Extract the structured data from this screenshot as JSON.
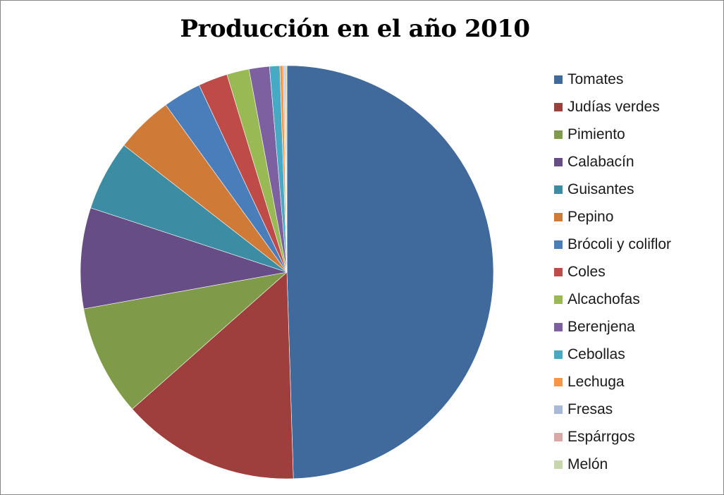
{
  "chart_data": {
    "type": "pie",
    "title": "Producción en el año 2010",
    "legend_position": "right",
    "start_angle": "top, clockwise",
    "slices": [
      {
        "label": "Tomates",
        "value": 49.6,
        "color": "#40699C"
      },
      {
        "label": "Judías verdes",
        "value": 14.0,
        "color": "#9E3F3D"
      },
      {
        "label": "Pimiento",
        "value": 8.7,
        "color": "#7F9A48"
      },
      {
        "label": "Calabacín",
        "value": 7.9,
        "color": "#664D86"
      },
      {
        "label": "Guisantes",
        "value": 5.5,
        "color": "#3C8DA3"
      },
      {
        "label": "Pepino",
        "value": 4.5,
        "color": "#CF7B37"
      },
      {
        "label": "Brócoli y coliflor",
        "value": 3.0,
        "color": "#4A7EBB"
      },
      {
        "label": "Coles",
        "value": 2.3,
        "color": "#BE4B48"
      },
      {
        "label": "Alcachofas",
        "value": 1.75,
        "color": "#98B954"
      },
      {
        "label": "Berenjena",
        "value": 1.6,
        "color": "#7D60A0"
      },
      {
        "label": "Cebollas",
        "value": 0.8,
        "color": "#46AAC5"
      },
      {
        "label": "Lechuga",
        "value": 0.25,
        "color": "#F79646"
      },
      {
        "label": "Fresas",
        "value": 0.1,
        "color": "#A9B9D8"
      },
      {
        "label": "Espárrgos",
        "value": 0.1,
        "color": "#D9A7A6"
      },
      {
        "label": "Melón",
        "value": 0.1,
        "color": "#C6D7AE"
      }
    ]
  }
}
